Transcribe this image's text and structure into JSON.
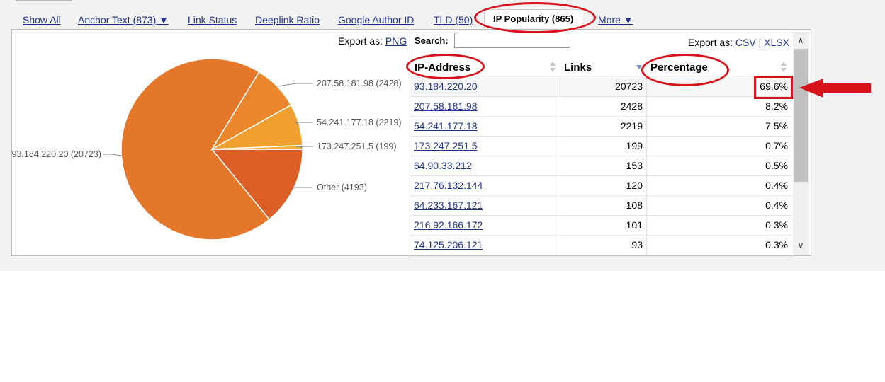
{
  "tabs": [
    {
      "label": "Show All"
    },
    {
      "label": "Anchor Text (873) ▼"
    },
    {
      "label": "Link Status"
    },
    {
      "label": "Deeplink Ratio"
    },
    {
      "label": "Google Author ID"
    },
    {
      "label": "TLD (50)"
    },
    {
      "label": "IP Popularity (865)"
    },
    {
      "label": "More ▼"
    }
  ],
  "chart_panel": {
    "export_prefix": "Export as:",
    "export_png": "PNG"
  },
  "table_panel": {
    "search_label": "Search:",
    "search_value": "",
    "export_prefix": "Export as:",
    "export_csv": "CSV",
    "export_sep": "|",
    "export_xlsx": "XLSX",
    "columns": [
      "IP-Address",
      "Links",
      "Percentage"
    ],
    "sort_column": "Links",
    "sort_direction": "descending",
    "rows": [
      {
        "ip": "93.184.220.20",
        "links": "20723",
        "pct": "69.6%"
      },
      {
        "ip": "207.58.181.98",
        "links": "2428",
        "pct": "8.2%"
      },
      {
        "ip": "54.241.177.18",
        "links": "2219",
        "pct": "7.5%"
      },
      {
        "ip": "173.247.251.5",
        "links": "199",
        "pct": "0.7%"
      },
      {
        "ip": "64.90.33.212",
        "links": "153",
        "pct": "0.5%"
      },
      {
        "ip": "217.76.132.144",
        "links": "120",
        "pct": "0.4%"
      },
      {
        "ip": "64.233.167.121",
        "links": "108",
        "pct": "0.4%"
      },
      {
        "ip": "216.92.166.172",
        "links": "101",
        "pct": "0.3%"
      },
      {
        "ip": "74.125.206.121",
        "links": "93",
        "pct": "0.3%"
      }
    ]
  },
  "colors": {
    "link": "#22348c",
    "annotation": "#d8121b",
    "slice_main": "#e5772b",
    "slice_2": "#ea872c",
    "slice_3": "#f0a030",
    "slice_4": "#f5ad3a",
    "slice_other": "#dc5f28"
  },
  "chart_data": {
    "type": "pie",
    "labels": [
      "93.184.220.20 (20723)",
      "207.58.181.98 (2428)",
      "54.241.177.18 (2219)",
      "173.247.251.5 (199)",
      "Other (4193)"
    ],
    "values": [
      20723,
      2428,
      2219,
      199,
      4193
    ],
    "colors": [
      "#e5772b",
      "#ea872c",
      "#f0a030",
      "#f5ad3a",
      "#dc5f28"
    ]
  }
}
